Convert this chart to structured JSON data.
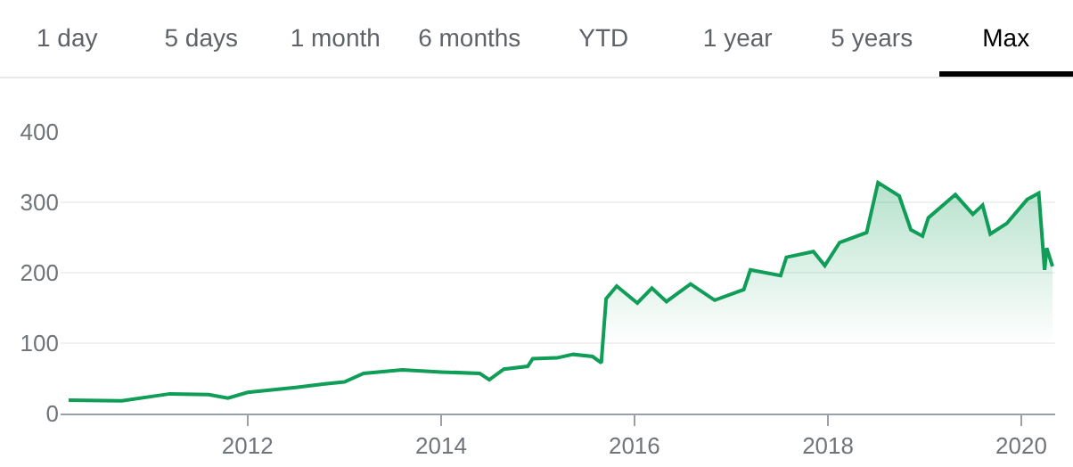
{
  "chart_data": {
    "type": "area",
    "annotations": [
      "1 day",
      "5 days",
      "1 month",
      "6 months",
      "YTD",
      "1 year",
      "5 years",
      "Max"
    ],
    "x": [
      "2010-02-24",
      "2010-09-13",
      "2011-03-14",
      "2011-08-07",
      "2011-10-19",
      "2012-01-01",
      "2012-07-01",
      "2012-10-19",
      "2013-01-01",
      "2013-03-14",
      "2013-08-07",
      "2014-01-01",
      "2014-05-27",
      "2014-07-02",
      "2014-08-26",
      "2014-11-24",
      "2014-12-13",
      "2015-03-14",
      "2015-05-15",
      "2015-07-27",
      "2015-08-29",
      "2015-09-16",
      "2015-10-26",
      "2016-01-12",
      "2016-03-07",
      "2016-05-01",
      "2016-07-31",
      "2016-10-30",
      "2017-02-17",
      "2017-03-14",
      "2017-07-06",
      "2017-07-28",
      "2017-11-07",
      "2017-12-20",
      "2018-02-14",
      "2018-05-27",
      "2018-07-09",
      "2018-09-27",
      "2018-11-10",
      "2018-12-24",
      "2019-01-15",
      "2019-04-27",
      "2019-07-02",
      "2019-08-08",
      "2019-09-06",
      "2019-11-07",
      "2020-01-23",
      "2020-03-07",
      "2020-03-29",
      "2020-04-06",
      "2020-04-28"
    ],
    "series": [
      {
        "color": "#0f9d58",
        "values": [
          19,
          18,
          28,
          27,
          22,
          30,
          37,
          42,
          45,
          57,
          62,
          59,
          57,
          48,
          63,
          67,
          78,
          79,
          84,
          81,
          72,
          163,
          181,
          157,
          178,
          159,
          184,
          161,
          176,
          204,
          196,
          222,
          230,
          210,
          243,
          257,
          328,
          309,
          261,
          252,
          278,
          311,
          283,
          296,
          255,
          270,
          304,
          313,
          204,
          235,
          209
        ]
      }
    ],
    "xlim": [
      "2010-01-25",
      "2020-05-08"
    ],
    "xticks": [
      {
        "value": "2012-01-01",
        "label": "2012"
      },
      {
        "value": "2014-01-01",
        "label": "2014"
      },
      {
        "value": "2016-01-01",
        "label": "2016"
      },
      {
        "value": "2018-01-01",
        "label": "2018"
      },
      {
        "value": "2020-01-01",
        "label": "2020"
      }
    ],
    "ylim": [
      0,
      400
    ],
    "yticks": [
      0,
      100,
      200,
      300,
      400
    ],
    "grid": "y"
  }
}
